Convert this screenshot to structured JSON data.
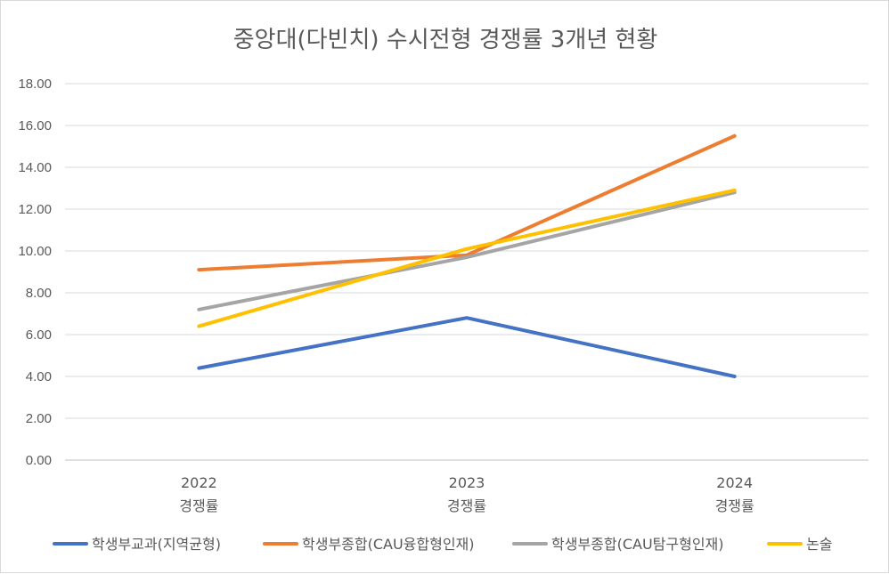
{
  "chart_data": {
    "type": "line",
    "title": "중앙대(다빈치) 수시전형 경쟁률 3개년 현황",
    "categories": [
      {
        "year": "2022",
        "label": "경쟁률"
      },
      {
        "year": "2023",
        "label": "경쟁률"
      },
      {
        "year": "2024",
        "label": "경쟁률"
      }
    ],
    "ylim": [
      0,
      18
    ],
    "ytick_step": 2,
    "ytick_labels": [
      "0.00",
      "2.00",
      "4.00",
      "6.00",
      "8.00",
      "10.00",
      "12.00",
      "14.00",
      "16.00",
      "18.00"
    ],
    "grid": true,
    "legend_position": "bottom",
    "series": [
      {
        "name": "학생부교과(지역균형)",
        "color": "#4472C4",
        "values": [
          4.4,
          6.8,
          4.0
        ]
      },
      {
        "name": "학생부종합(CAU융합형인재)",
        "color": "#ED7D31",
        "values": [
          9.1,
          9.8,
          15.5
        ]
      },
      {
        "name": "학생부종합(CAU탐구형인재)",
        "color": "#A5A5A5",
        "values": [
          7.2,
          9.7,
          12.8
        ]
      },
      {
        "name": "논술",
        "color": "#FFC000",
        "values": [
          6.4,
          10.1,
          12.9
        ]
      }
    ]
  }
}
